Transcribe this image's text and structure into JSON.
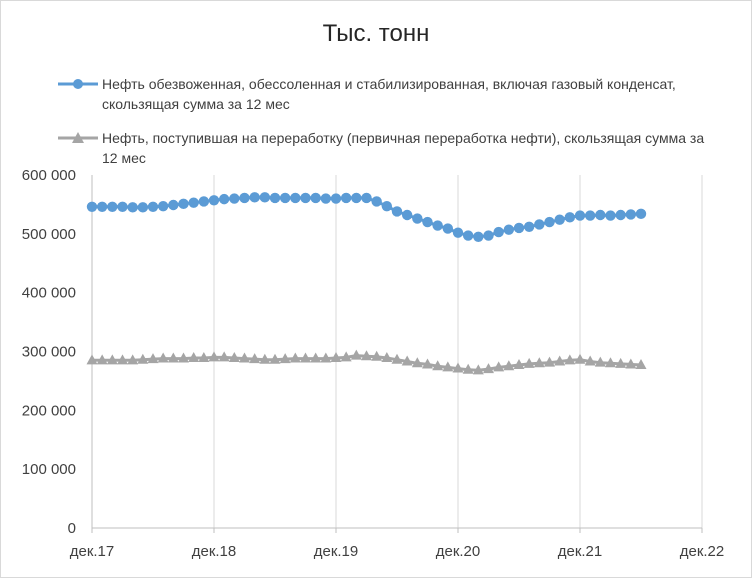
{
  "chart_data": {
    "type": "line",
    "title": "Тыс. тонн",
    "xlabel": "",
    "ylabel": "",
    "ylim": [
      0,
      600000
    ],
    "yticks": [
      "0",
      "100 000",
      "200 000",
      "300 000",
      "400 000",
      "500 000",
      "600 000"
    ],
    "xticks": [
      "дек.17",
      "дек.18",
      "дек.19",
      "дек.20",
      "дек.21",
      "дек.22"
    ],
    "x_start": "дек.17",
    "x_months_total": 60,
    "grid": "vertical only",
    "legend_position": "top",
    "series": [
      {
        "name": "Нефть обезвоженная, обессоленная и стабилизированная, включая газовый конденсат, скользящая сумма за 12 мес",
        "color": "#5b9bd5",
        "marker": "circle",
        "values": [
          546000,
          546000,
          546000,
          546000,
          545000,
          545000,
          546000,
          547000,
          549000,
          551000,
          553000,
          555000,
          557000,
          559000,
          560000,
          561000,
          562000,
          562000,
          561000,
          561000,
          561000,
          561000,
          561000,
          560000,
          560000,
          561000,
          561000,
          561000,
          555000,
          547000,
          538000,
          532000,
          526000,
          520000,
          514000,
          509000,
          502000,
          497000,
          495000,
          497000,
          503000,
          507000,
          510000,
          512000,
          516000,
          520000,
          524000,
          528000,
          531000,
          531000,
          532000,
          531000,
          532000,
          533000,
          534000
        ]
      },
      {
        "name": "Нефть, поступившая на переработку (первичная переработка нефти), скользящая сумма за 12 мес",
        "color": "#a5a5a5",
        "marker": "triangle",
        "values": [
          285000,
          285000,
          285000,
          285000,
          285000,
          286000,
          287000,
          288000,
          288000,
          288000,
          289000,
          289000,
          290000,
          290000,
          289000,
          288000,
          287000,
          286000,
          286000,
          287000,
          288000,
          288000,
          288000,
          288000,
          289000,
          290000,
          293000,
          292000,
          291000,
          289000,
          286000,
          283000,
          280000,
          278000,
          275000,
          273000,
          271000,
          269000,
          268000,
          270000,
          273000,
          275000,
          277000,
          279000,
          280000,
          281000,
          283000,
          285000,
          286000,
          283000,
          281000,
          280000,
          279000,
          278000,
          277000
        ]
      }
    ]
  }
}
